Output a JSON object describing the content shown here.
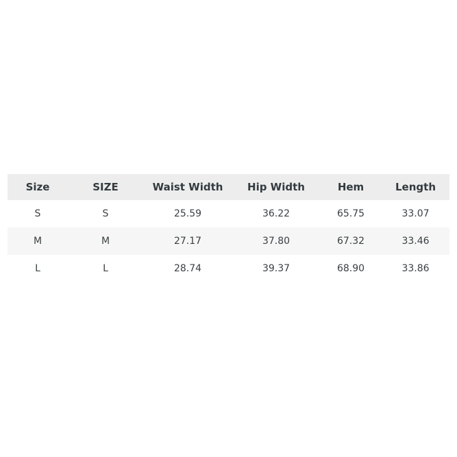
{
  "page": {
    "background_color": "#ffffff"
  },
  "table": {
    "columns": [
      "Size",
      "SIZE",
      "Waist Width",
      "Hip Width",
      "Hem",
      "Length"
    ],
    "rows": [
      [
        "S",
        "S",
        "25.59",
        "36.22",
        "65.75",
        "33.07"
      ],
      [
        "M",
        "M",
        "27.17",
        "37.80",
        "67.32",
        "33.46"
      ],
      [
        "L",
        "L",
        "28.74",
        "39.37",
        "68.90",
        "33.86"
      ]
    ],
    "colors": {
      "header_bg": "#ededed",
      "stripe_row_bg": "#f6f6f6",
      "plain_row_bg": "#ffffff",
      "header_text": "#333b40",
      "cell_text": "#3a3f42"
    }
  },
  "chart_data": {
    "type": "table",
    "title": "",
    "columns": [
      "Size",
      "SIZE",
      "Waist Width",
      "Hip Width",
      "Hem",
      "Length"
    ],
    "rows": [
      {
        "size": "S",
        "size_alt": "S",
        "waist_width": 25.59,
        "hip_width": 36.22,
        "hem": 65.75,
        "length": 33.07
      },
      {
        "size": "M",
        "size_alt": "M",
        "waist_width": 27.17,
        "hip_width": 37.8,
        "hem": 67.32,
        "length": 33.46
      },
      {
        "size": "L",
        "size_alt": "L",
        "waist_width": 28.74,
        "hip_width": 39.37,
        "hem": 68.9,
        "length": 33.86
      }
    ],
    "layout": {
      "zebra_striping": true,
      "header_background": "#ededed",
      "gridlines": false
    }
  }
}
